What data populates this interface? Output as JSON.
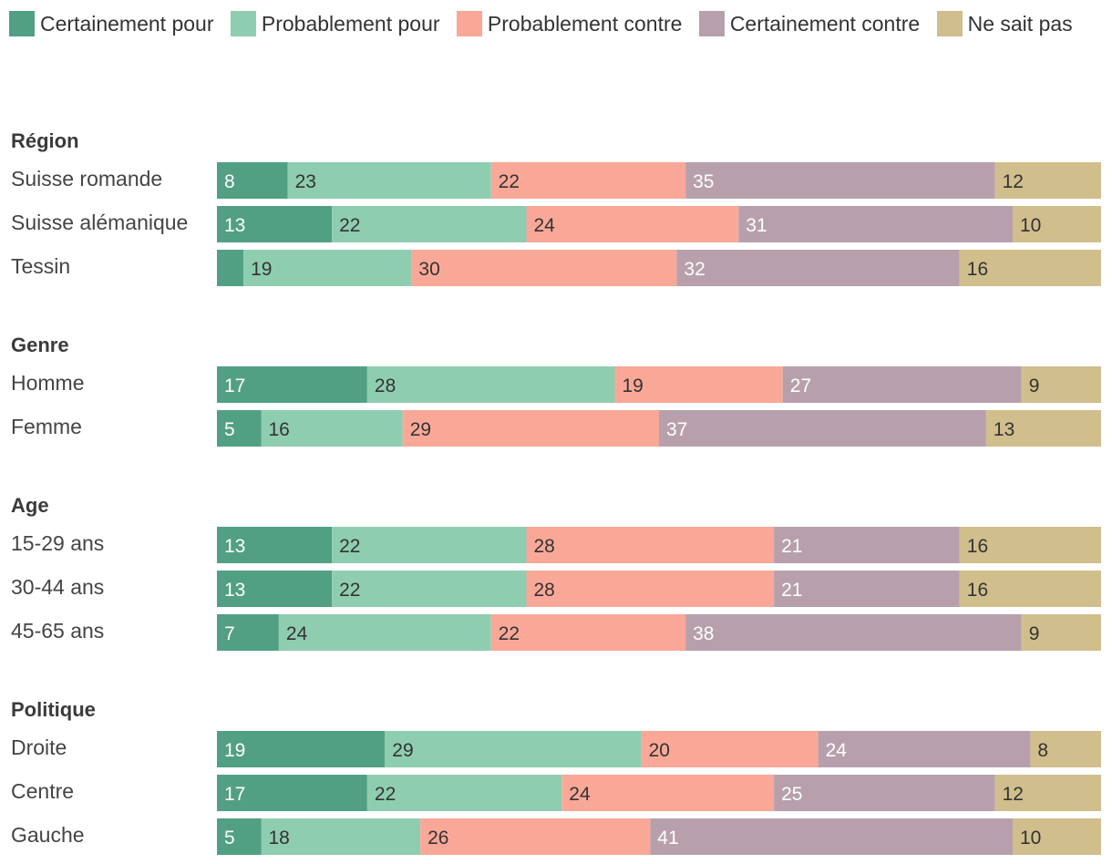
{
  "chart_data": {
    "type": "bar",
    "stacked": true,
    "orientation": "horizontal",
    "series": [
      {
        "name": "Certainement pour",
        "color": "#52a083",
        "label_color": "#ffffff"
      },
      {
        "name": "Probablement pour",
        "color": "#8fcdb0",
        "label_color": "#333333"
      },
      {
        "name": "Probablement contre",
        "color": "#f9a898",
        "label_color": "#333333"
      },
      {
        "name": "Certainement contre",
        "color": "#b7a0ac",
        "label_color": "#ffffff"
      },
      {
        "name": "Ne sait pas",
        "color": "#d0be8c",
        "label_color": "#333333"
      }
    ],
    "groups": [
      {
        "title": "Région",
        "rows": [
          {
            "label": "Suisse romande",
            "values": [
              8,
              23,
              22,
              35,
              12
            ]
          },
          {
            "label": "Suisse alémanique",
            "values": [
              13,
              22,
              24,
              31,
              10
            ]
          },
          {
            "label": "Tessin",
            "values": [
              3,
              19,
              30,
              32,
              16
            ],
            "hidden_labels": [
              0
            ]
          }
        ]
      },
      {
        "title": "Genre",
        "rows": [
          {
            "label": "Homme",
            "values": [
              17,
              28,
              19,
              27,
              9
            ]
          },
          {
            "label": "Femme",
            "values": [
              5,
              16,
              29,
              37,
              13
            ]
          }
        ]
      },
      {
        "title": "Age",
        "rows": [
          {
            "label": "15-29 ans",
            "values": [
              13,
              22,
              28,
              21,
              16
            ]
          },
          {
            "label": "30-44 ans",
            "values": [
              13,
              22,
              28,
              21,
              16
            ]
          },
          {
            "label": "45-65 ans",
            "values": [
              7,
              24,
              22,
              38,
              9
            ]
          }
        ]
      },
      {
        "title": "Politique",
        "rows": [
          {
            "label": "Droite",
            "values": [
              19,
              29,
              20,
              24,
              8
            ]
          },
          {
            "label": "Centre",
            "values": [
              17,
              22,
              24,
              25,
              12
            ]
          },
          {
            "label": "Gauche",
            "values": [
              5,
              18,
              26,
              41,
              10
            ]
          }
        ]
      }
    ],
    "xlim": [
      0,
      100
    ],
    "unit": "%"
  }
}
